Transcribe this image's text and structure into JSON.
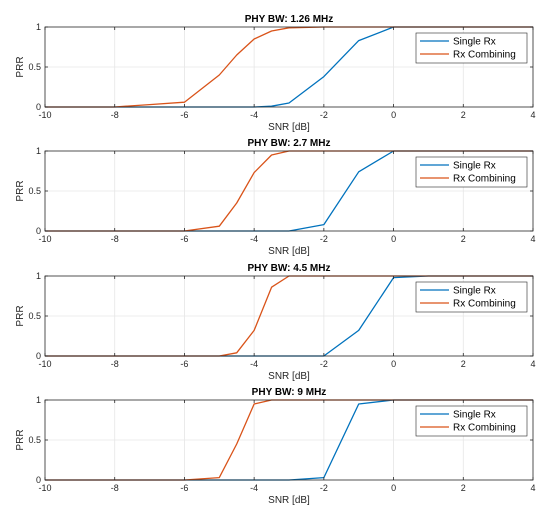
{
  "chart_data": [
    {
      "type": "line",
      "title": "PHY BW: 1.26 MHz",
      "xlabel": "SNR [dB]",
      "ylabel": "PRR",
      "xlim": [
        -10,
        4
      ],
      "ylim": [
        0,
        1
      ],
      "xticks": [
        -10,
        -8,
        -6,
        -4,
        -2,
        0,
        2,
        4
      ],
      "yticks": [
        0,
        0.5,
        1
      ],
      "grid": true,
      "legend": "top-right",
      "series": [
        {
          "name": "Single Rx",
          "color": "#0072BD",
          "x": [
            -10,
            -8,
            -6,
            -4,
            -3.5,
            -3,
            -2,
            -1,
            0,
            1,
            4
          ],
          "y": [
            0,
            0,
            0,
            0,
            0.01,
            0.05,
            0.38,
            0.83,
            1,
            1,
            1
          ]
        },
        {
          "name": "Rx Combining",
          "color": "#D95319",
          "x": [
            -10,
            -8,
            -7,
            -6,
            -5,
            -4.5,
            -4,
            -3.5,
            -3,
            -2,
            -1,
            0,
            4
          ],
          "y": [
            0,
            0,
            0.03,
            0.06,
            0.4,
            0.65,
            0.85,
            0.95,
            0.99,
            1,
            1,
            1,
            1
          ]
        }
      ]
    },
    {
      "type": "line",
      "title": "PHY BW: 2.7 MHz",
      "xlabel": "SNR [dB]",
      "ylabel": "PRR",
      "xlim": [
        -10,
        4
      ],
      "ylim": [
        0,
        1
      ],
      "xticks": [
        -10,
        -8,
        -6,
        -4,
        -2,
        0,
        2,
        4
      ],
      "yticks": [
        0,
        0.5,
        1
      ],
      "grid": true,
      "legend": "top-right",
      "series": [
        {
          "name": "Single Rx",
          "color": "#0072BD",
          "x": [
            -10,
            -6,
            -3,
            -2,
            -1,
            0,
            1,
            4
          ],
          "y": [
            0,
            0,
            0,
            0.08,
            0.74,
            1,
            1,
            1
          ]
        },
        {
          "name": "Rx Combining",
          "color": "#D95319",
          "x": [
            -10,
            -6,
            -5,
            -4.5,
            -4,
            -3.5,
            -3,
            -2,
            4
          ],
          "y": [
            0,
            0,
            0.06,
            0.35,
            0.73,
            0.95,
            1,
            1,
            1
          ]
        }
      ]
    },
    {
      "type": "line",
      "title": "PHY BW: 4.5 MHz",
      "xlabel": "SNR [dB]",
      "ylabel": "PRR",
      "xlim": [
        -10,
        4
      ],
      "ylim": [
        0,
        1
      ],
      "xticks": [
        -10,
        -8,
        -6,
        -4,
        -2,
        0,
        2,
        4
      ],
      "yticks": [
        0,
        0.5,
        1
      ],
      "grid": true,
      "legend": "top-right",
      "series": [
        {
          "name": "Single Rx",
          "color": "#0072BD",
          "x": [
            -10,
            -6,
            -3,
            -2,
            -1,
            0,
            1,
            4
          ],
          "y": [
            0,
            0,
            0,
            0,
            0.32,
            0.98,
            1,
            1
          ]
        },
        {
          "name": "Rx Combining",
          "color": "#D95319",
          "x": [
            -10,
            -6,
            -5,
            -4.5,
            -4,
            -3.5,
            -3,
            -2,
            4
          ],
          "y": [
            0,
            0,
            0,
            0.04,
            0.32,
            0.86,
            1,
            1,
            1
          ]
        }
      ]
    },
    {
      "type": "line",
      "title": "PHY BW: 9 MHz",
      "xlabel": "SNR [dB]",
      "ylabel": "PRR",
      "xlim": [
        -10,
        4
      ],
      "ylim": [
        0,
        1
      ],
      "xticks": [
        -10,
        -8,
        -6,
        -4,
        -2,
        0,
        2,
        4
      ],
      "yticks": [
        0,
        0.5,
        1
      ],
      "grid": true,
      "legend": "top-right",
      "series": [
        {
          "name": "Single Rx",
          "color": "#0072BD",
          "x": [
            -10,
            -6,
            -3,
            -2,
            -1,
            0,
            1,
            4
          ],
          "y": [
            0,
            0,
            0,
            0.03,
            0.95,
            1,
            1,
            1
          ]
        },
        {
          "name": "Rx Combining",
          "color": "#D95319",
          "x": [
            -10,
            -6,
            -5,
            -4.5,
            -4,
            -3.5,
            -3,
            -2,
            4
          ],
          "y": [
            0,
            0,
            0.03,
            0.45,
            0.95,
            1,
            1,
            1,
            1
          ]
        }
      ]
    }
  ]
}
